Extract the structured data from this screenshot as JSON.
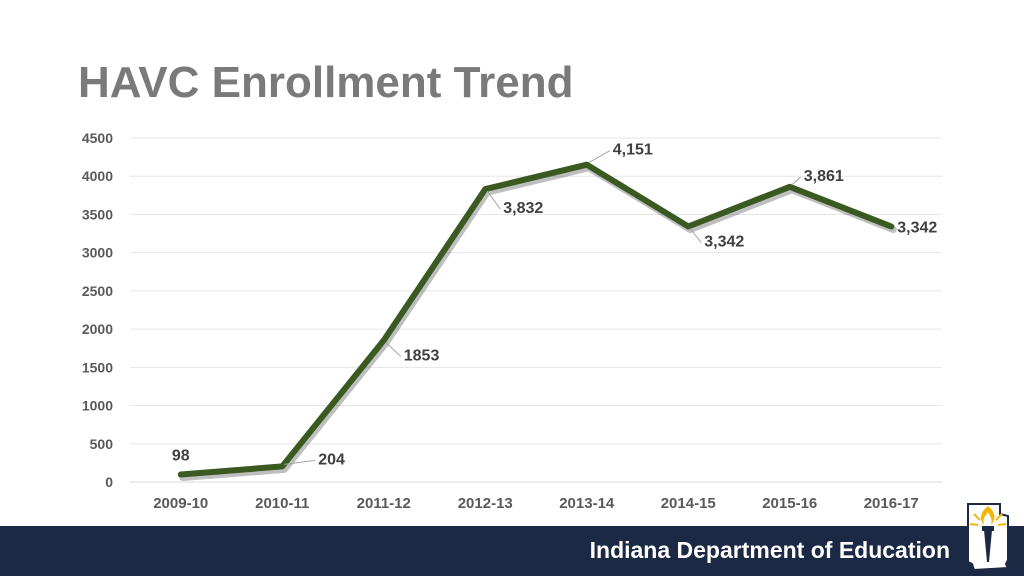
{
  "chart_data": {
    "type": "line",
    "title": "HAVC Enrollment Trend",
    "categories": [
      "2009-10",
      "2010-11",
      "2011-12",
      "2012-13",
      "2013-14",
      "2014-15",
      "2015-16",
      "2016-17"
    ],
    "values": [
      98,
      204,
      1853,
      3832,
      4151,
      3342,
      3861,
      3342
    ],
    "data_labels": [
      "98",
      "204",
      "1853",
      "3,832",
      "4,151",
      "3,342",
      "3,861",
      "3,342"
    ],
    "yticks": [
      "0",
      "500",
      "1000",
      "1500",
      "2000",
      "2500",
      "3000",
      "3500",
      "4000",
      "4500"
    ],
    "ylim": [
      0,
      4500
    ],
    "grid": true,
    "legend": "none",
    "line_color": "#3a5a22"
  },
  "footer": {
    "org_name": "Indiana Department of Education"
  },
  "logo": {
    "icon": "indiana-torch-logo-icon"
  }
}
